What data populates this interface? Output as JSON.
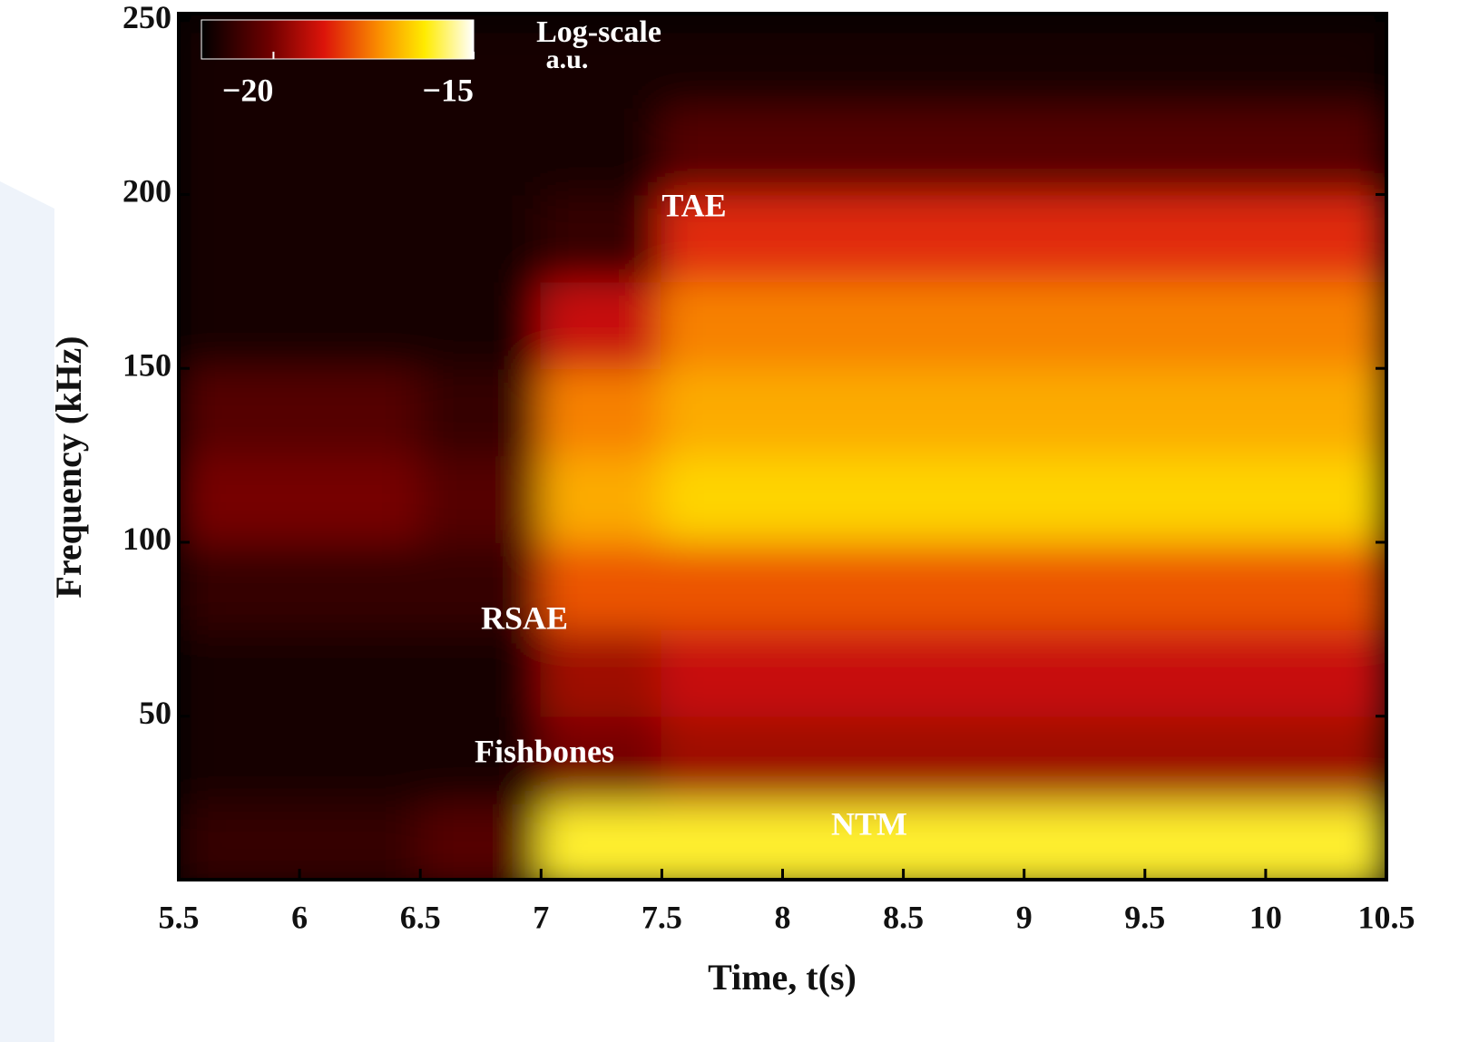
{
  "chart_data": {
    "type": "spectrogram",
    "xlabel": "Time, t(s)",
    "ylabel": "Frequency (kHz)",
    "xlim": [
      5.5,
      10.5
    ],
    "xticks": [
      5.5,
      6,
      6.5,
      7,
      7.5,
      8,
      8.5,
      9,
      9.5,
      10,
      10.5
    ],
    "ylim": [
      3,
      252
    ],
    "yticks": [
      50,
      100,
      150,
      200,
      250
    ],
    "x_bins": [
      5.5,
      6,
      6.5,
      7,
      7.5,
      8,
      8.5,
      9,
      9.5,
      10,
      10.5
    ],
    "y_bins": [
      0,
      25,
      50,
      75,
      100,
      125,
      150,
      175,
      200,
      225,
      250
    ],
    "z": [
      [
        -21,
        -21,
        -20.5,
        -16,
        -16,
        -16,
        -16,
        -16,
        -16,
        -16
      ],
      [
        -21.5,
        -21.5,
        -21.5,
        -20,
        -19.5,
        -19.5,
        -19.5,
        -19.5,
        -19.5,
        -19.5
      ],
      [
        -21.5,
        -21.5,
        -21.5,
        -19.5,
        -19,
        -19,
        -19,
        -19,
        -19,
        -19
      ],
      [
        -21,
        -21,
        -21,
        -18,
        -18,
        -18,
        -18,
        -18,
        -18,
        -18
      ],
      [
        -20,
        -20,
        -20.5,
        -17,
        -16.5,
        -16.5,
        -16.5,
        -16.5,
        -16.5,
        -16.5
      ],
      [
        -20.5,
        -20.5,
        -21,
        -17.5,
        -17,
        -17,
        -17,
        -17,
        -17,
        -17
      ],
      [
        -21.5,
        -21.5,
        -21.5,
        -19,
        -17.5,
        -17.5,
        -17.5,
        -17.5,
        -17.5,
        -17.5
      ],
      [
        -21.5,
        -21.5,
        -21.5,
        -21,
        -18.5,
        -18.5,
        -18.5,
        -18.5,
        -18.5,
        -18.5
      ],
      [
        -21.5,
        -21.5,
        -21.5,
        -21.5,
        -20.5,
        -20.5,
        -20.5,
        -20.5,
        -20.5,
        -20.5
      ],
      [
        -21.5,
        -21.5,
        -21.5,
        -21.5,
        -21.5,
        -21.5,
        -21.5,
        -21.5,
        -21.5,
        -21.5
      ]
    ],
    "colorbar": {
      "title": [
        "Log-scale",
        "a.u."
      ],
      "clim": [
        -21.8,
        -15
      ],
      "ticks": [
        {
          "value": -20,
          "label": "−20"
        },
        {
          "value": -15,
          "label": "−15"
        }
      ]
    },
    "annotations": [
      "TAE",
      "RSAE",
      "Fishbones",
      "NTM"
    ]
  }
}
